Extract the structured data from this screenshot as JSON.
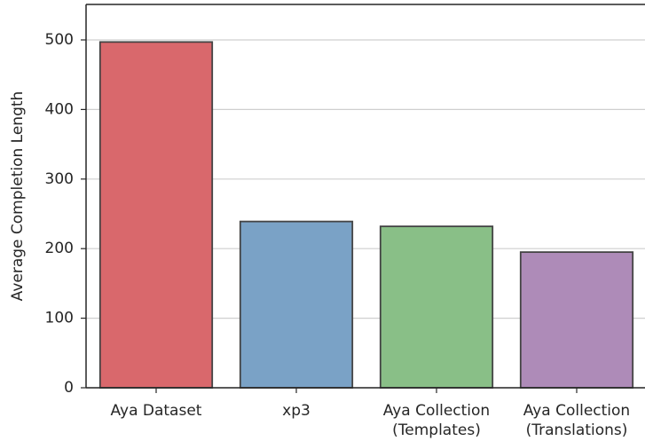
{
  "chart_data": {
    "type": "bar",
    "ylabel": "Average Completion Length",
    "categories": [
      "Aya Dataset",
      "xp3",
      "Aya Collection\n(Templates)",
      "Aya Collection\n(Translations)"
    ],
    "values": [
      497,
      239,
      232,
      195
    ],
    "colors": [
      "#d9686c",
      "#7aa2c6",
      "#89bf87",
      "#ae8bb8"
    ],
    "edgecolor": "#444444",
    "ylim": [
      0,
      551
    ],
    "yticks": [
      0,
      100,
      200,
      300,
      400,
      500
    ],
    "grid": true
  }
}
